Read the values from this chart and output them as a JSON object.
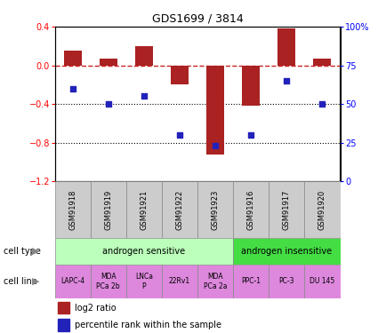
{
  "title": "GDS1699 / 3814",
  "samples": [
    "GSM91918",
    "GSM91919",
    "GSM91921",
    "GSM91922",
    "GSM91923",
    "GSM91916",
    "GSM91917",
    "GSM91920"
  ],
  "log2_ratio": [
    0.15,
    0.07,
    0.2,
    -0.2,
    -0.92,
    -0.42,
    0.38,
    0.07
  ],
  "percentile_rank": [
    60,
    50,
    55,
    30,
    23,
    30,
    65,
    50
  ],
  "ylim_left": [
    -1.2,
    0.4
  ],
  "ylim_right": [
    0,
    100
  ],
  "yticks_left": [
    -1.2,
    -0.8,
    -0.4,
    0.0,
    0.4
  ],
  "yticks_right": [
    0,
    25,
    50,
    75,
    100
  ],
  "cell_types": [
    {
      "label": "androgen sensitive",
      "span": [
        0,
        5
      ],
      "color": "#bbffbb"
    },
    {
      "label": "androgen insensitive",
      "span": [
        5,
        8
      ],
      "color": "#44dd44"
    }
  ],
  "cell_lines": [
    "LAPC-4",
    "MDA\nPCa 2b",
    "LNCa\nP",
    "22Rv1",
    "MDA\nPCa 2a",
    "PPC-1",
    "PC-3",
    "DU 145"
  ],
  "cell_line_color": "#dd88dd",
  "bar_color": "#aa2222",
  "dot_color": "#2222bb",
  "ref_line_color": "#cc2222",
  "grid_color": "#000000",
  "bg_color": "#ffffff",
  "sample_box_color": "#cccccc"
}
